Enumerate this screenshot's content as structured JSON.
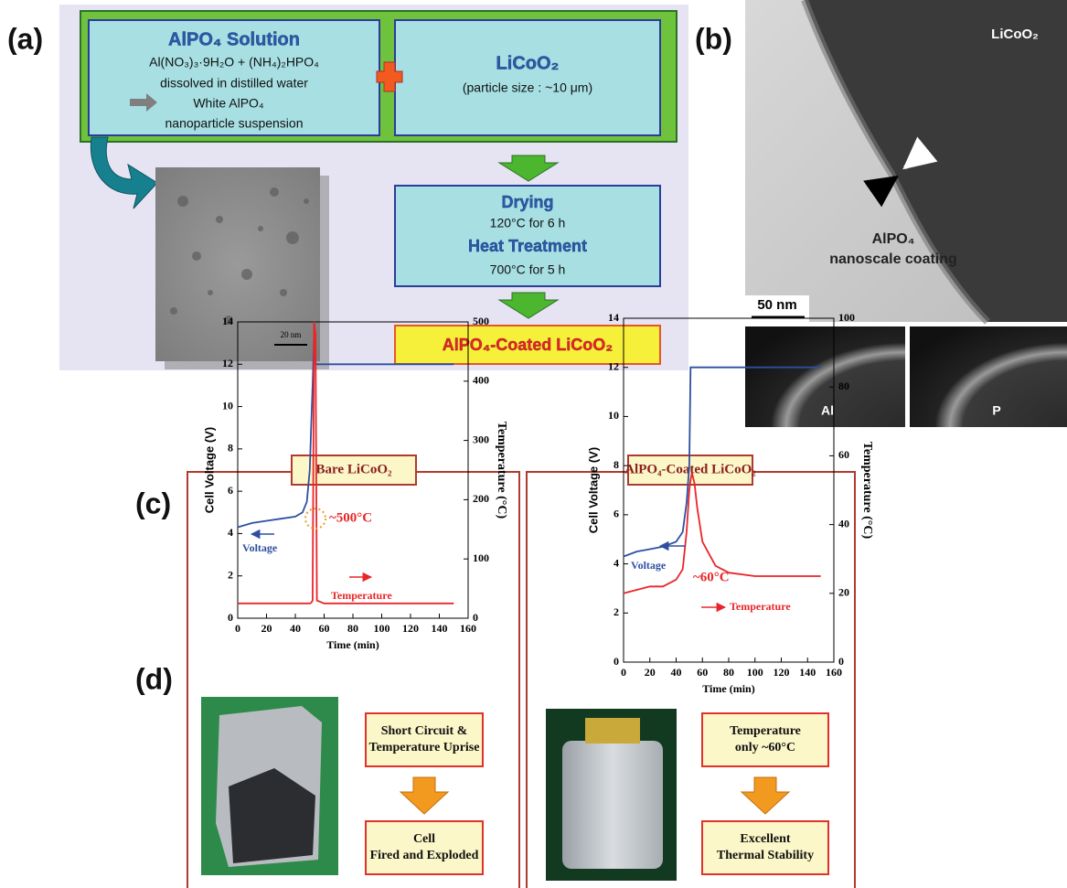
{
  "panel_labels": [
    "(a)",
    "(b)",
    "(c)",
    "(d)"
  ],
  "panel_a": {
    "solution_title": "AlPO₄ Solution",
    "solution_lines": [
      "Al(NO₃)₃·9H₂O + (NH₄)₂HPO₄",
      "dissolved in distilled water",
      "White AlPO₄",
      "nanoparticle suspension"
    ],
    "licoo2_title": "LiCoO₂",
    "licoo2_note": "(particle size : ~10 μm)",
    "tem_scale": "20 nm",
    "drying_title": "Drying",
    "drying_note": "120°C for 6 h",
    "heat_title": "Heat Treatment",
    "heat_note": "700°C for 5 h",
    "result": "AlPO₄-Coated LiCoO₂"
  },
  "panel_b": {
    "particle": "LiCoO₂",
    "coating_lines": [
      "AlPO₄",
      "nanoscale coating"
    ],
    "scale": "50 nm",
    "maps": [
      "Al",
      "P"
    ]
  },
  "chart_data": [
    {
      "type": "line",
      "title": "Bare LiCoO₂",
      "x_label": "Time (min)",
      "y_label": "Cell Voltage (V)",
      "y2_label": "Temperature (°C)",
      "x": [
        0,
        10,
        20,
        30,
        40,
        45,
        48,
        50,
        51,
        52,
        53,
        54,
        55,
        60,
        100,
        150
      ],
      "series": [
        {
          "name": "Voltage",
          "color": "#2e4fa0",
          "values": [
            4.3,
            4.5,
            4.6,
            4.7,
            4.8,
            5.0,
            5.5,
            7,
            9,
            11,
            13.3,
            12,
            12,
            12,
            12,
            12
          ]
        },
        {
          "name": "Temperature",
          "color": "#e8262a",
          "axis": "y2",
          "values": [
            25,
            25,
            25,
            25,
            25,
            25,
            25,
            25,
            26,
            30,
            500,
            480,
            30,
            25,
            25,
            25
          ]
        }
      ],
      "xlim": [
        0,
        160
      ],
      "xticks": [
        0,
        20,
        40,
        60,
        80,
        100,
        120,
        140,
        160
      ],
      "ylim": [
        0,
        14
      ],
      "yticks": [
        0,
        2,
        4,
        6,
        8,
        10,
        12,
        14
      ],
      "y2lim": [
        0,
        500
      ],
      "y2ticks": [
        0,
        100,
        200,
        300,
        400,
        500
      ],
      "annotations": [
        {
          "text": "~500°C",
          "color": "#e8262a"
        },
        {
          "text": "Voltage",
          "color": "#2e4fa0"
        },
        {
          "text": "Temperature",
          "color": "#e8262a"
        }
      ]
    },
    {
      "type": "line",
      "title": "AlPO₄-Coated LiCoO₂",
      "x_label": "Time (min)",
      "y_label": "Cell Voltage (V)",
      "y2_label": "Temperature (°C)",
      "x": [
        0,
        10,
        20,
        30,
        40,
        45,
        48,
        50,
        51,
        52,
        54,
        56,
        60,
        70,
        80,
        100,
        150
      ],
      "series": [
        {
          "name": "Voltage",
          "color": "#2e4fa0",
          "values": [
            4.3,
            4.5,
            4.6,
            4.7,
            4.9,
            5.3,
            6.5,
            8,
            12,
            12,
            12,
            12,
            12,
            12,
            12,
            12,
            12
          ]
        },
        {
          "name": "Temperature",
          "color": "#e8262a",
          "axis": "y2",
          "values": [
            20,
            21,
            22,
            22,
            24,
            27,
            38,
            50,
            53,
            55,
            52,
            45,
            35,
            28,
            26,
            25,
            25
          ]
        }
      ],
      "xlim": [
        0,
        160
      ],
      "xticks": [
        0,
        20,
        40,
        60,
        80,
        100,
        120,
        140,
        160
      ],
      "ylim": [
        0,
        14
      ],
      "yticks": [
        0,
        2,
        4,
        6,
        8,
        10,
        12,
        14
      ],
      "y2lim": [
        0,
        100
      ],
      "y2ticks": [
        0,
        20,
        40,
        60,
        80,
        100
      ],
      "annotations": [
        {
          "text": "Voltage",
          "color": "#2e4fa0"
        },
        {
          "text": "~60°C",
          "color": "#e8262a"
        },
        {
          "text": "Temperature",
          "color": "#e8262a"
        }
      ]
    }
  ],
  "panel_d": {
    "left": {
      "before": [
        "Short Circuit &",
        "Temperature Uprise"
      ],
      "after": [
        "Cell",
        "Fired and Exploded"
      ]
    },
    "right": {
      "before": [
        "Temperature",
        "only ~60°C"
      ],
      "after": [
        "Excellent",
        "Thermal Stability"
      ]
    }
  }
}
